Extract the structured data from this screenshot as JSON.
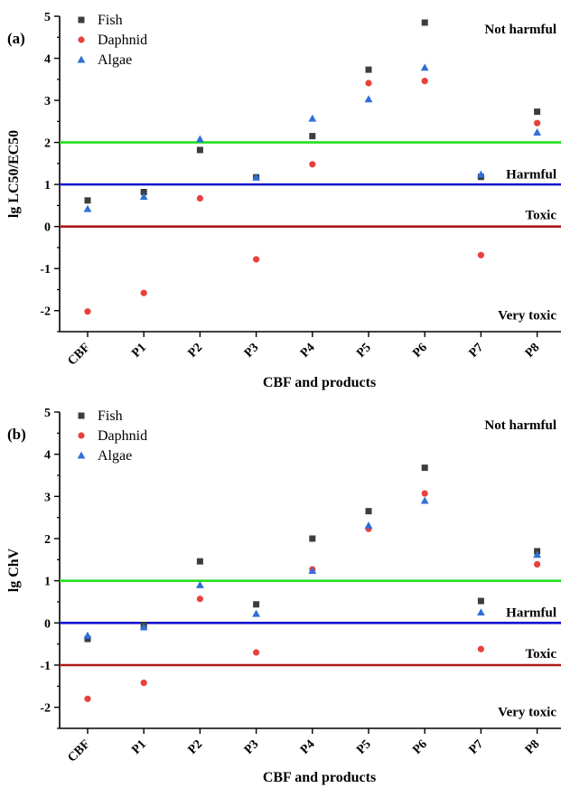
{
  "colors": {
    "fish": "#3d3d3d",
    "daphnid": "#e8403c",
    "algae": "#2f6fd8",
    "not_harmful_line": "#22e022",
    "harmful_line": "#1111cc",
    "toxic_line": "#b01818"
  },
  "chart_data": [
    {
      "type": "scatter",
      "panel_label": "(a)",
      "xlabel": "CBF and products",
      "ylabel": "lg LC50/EC50",
      "categories": [
        "CBF",
        "P1",
        "P2",
        "P3",
        "P4",
        "P5",
        "P6",
        "P7",
        "P8"
      ],
      "ylim": [
        -2.5,
        5
      ],
      "yticks": [
        "-2",
        "-1",
        "0",
        "1",
        "2",
        "3",
        "4",
        "5"
      ],
      "legend_position": "top-left",
      "series": [
        {
          "name": "Fish",
          "marker": "square",
          "values": [
            0.62,
            0.82,
            1.82,
            1.17,
            2.15,
            3.73,
            4.85,
            1.18,
            2.73
          ]
        },
        {
          "name": "Daphnid",
          "marker": "circle",
          "values": [
            -2.02,
            -1.58,
            0.67,
            -0.78,
            1.48,
            3.41,
            3.46,
            -0.68,
            2.46
          ]
        },
        {
          "name": "Algae",
          "marker": "triangle",
          "values": [
            0.42,
            0.71,
            2.08,
            1.17,
            2.57,
            3.03,
            3.78,
            1.24,
            2.24
          ]
        }
      ],
      "thresholds": [
        {
          "value": 2,
          "color_key": "not_harmful_line"
        },
        {
          "value": 1,
          "color_key": "harmful_line"
        },
        {
          "value": 0,
          "color_key": "toxic_line"
        }
      ],
      "zones": [
        {
          "label": "Not harmful",
          "y": 4.7
        },
        {
          "label": "Harmful",
          "y": 1.25
        },
        {
          "label": "Toxic",
          "y": 0.28
        },
        {
          "label": "Very toxic",
          "y": -2.1
        }
      ]
    },
    {
      "type": "scatter",
      "panel_label": "(b)",
      "xlabel": "CBF and products",
      "ylabel": "lg ChV",
      "categories": [
        "CBF",
        "P1",
        "P2",
        "P3",
        "P4",
        "P5",
        "P6",
        "P7",
        "P8"
      ],
      "ylim": [
        -2.5,
        5
      ],
      "yticks": [
        "-2",
        "-1",
        "0",
        "1",
        "2",
        "3",
        "4",
        "5"
      ],
      "legend_position": "top-left",
      "series": [
        {
          "name": "Fish",
          "marker": "square",
          "values": [
            -0.38,
            -0.05,
            1.46,
            0.44,
            2.0,
            2.65,
            3.68,
            0.52,
            1.7
          ]
        },
        {
          "name": "Daphnid",
          "marker": "circle",
          "values": [
            -1.8,
            -1.42,
            0.57,
            -0.7,
            1.27,
            2.23,
            3.07,
            -0.62,
            1.39
          ]
        },
        {
          "name": "Algae",
          "marker": "triangle",
          "values": [
            -0.3,
            -0.1,
            0.9,
            0.22,
            1.24,
            2.31,
            2.9,
            0.25,
            1.62
          ]
        }
      ],
      "thresholds": [
        {
          "value": 1,
          "color_key": "not_harmful_line"
        },
        {
          "value": 0,
          "color_key": "harmful_line"
        },
        {
          "value": -1,
          "color_key": "toxic_line"
        }
      ],
      "zones": [
        {
          "label": "Not harmful",
          "y": 4.7
        },
        {
          "label": "Harmful",
          "y": 0.25
        },
        {
          "label": "Toxic",
          "y": -0.72
        },
        {
          "label": "Very toxic",
          "y": -2.1
        }
      ]
    }
  ]
}
